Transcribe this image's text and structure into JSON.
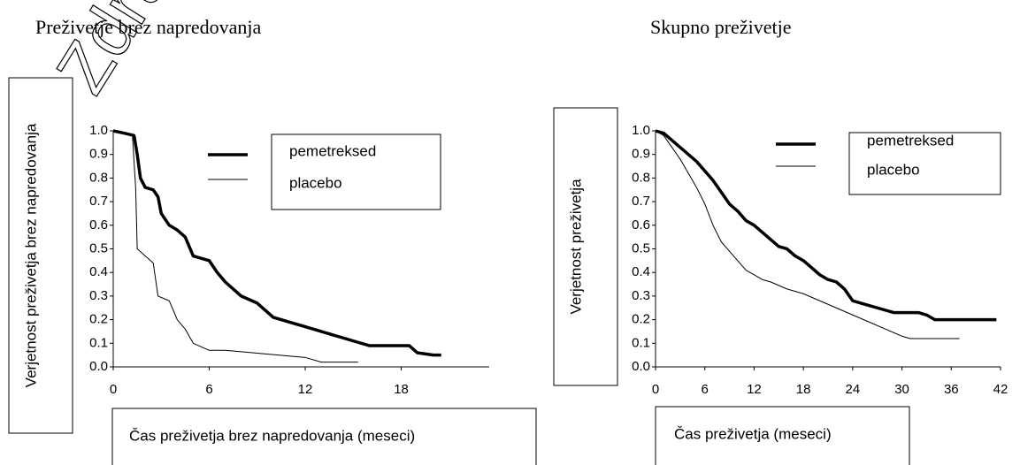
{
  "watermark": "Zdra",
  "chart_data": [
    {
      "type": "line",
      "title": "Preživetje brez napredovanja",
      "y_label": "Verjetnost preživetja brez napredovanja",
      "x_label": "Čas preživetja brez napredovanja (meseci)",
      "xlim": [
        0,
        23.5
      ],
      "xticks": [
        0,
        6,
        12,
        18
      ],
      "ylim": [
        0,
        1
      ],
      "yticks": [
        {
          "value": 0,
          "label": "0.0"
        },
        0.1,
        0.2,
        0.3,
        0.4,
        0.5,
        0.6,
        0.7,
        0.8,
        0.9,
        {
          "value": 1,
          "label": "1.0"
        }
      ],
      "series": [
        {
          "name": "pemetreksed",
          "color": "#000000",
          "x": [
            0,
            0.7,
            1.3,
            1.5,
            1.7,
            2,
            2.5,
            2.8,
            3,
            3.5,
            4,
            4.5,
            5,
            6,
            6.5,
            7,
            8,
            9,
            10,
            11,
            12,
            13,
            14,
            15,
            16,
            18.5,
            19,
            20,
            20.5
          ],
          "values": [
            1.0,
            0.99,
            0.98,
            0.9,
            0.8,
            0.76,
            0.75,
            0.72,
            0.65,
            0.6,
            0.58,
            0.55,
            0.47,
            0.45,
            0.4,
            0.36,
            0.3,
            0.27,
            0.21,
            0.19,
            0.17,
            0.15,
            0.13,
            0.11,
            0.09,
            0.09,
            0.06,
            0.05,
            0.05
          ]
        },
        {
          "name": "placebo",
          "color": "#000000",
          "x": [
            0,
            1.2,
            1.4,
            1.5,
            2,
            2.5,
            2.8,
            3.5,
            4,
            4.5,
            5,
            6,
            7,
            12,
            13,
            15.3
          ],
          "values": [
            1.0,
            0.98,
            0.76,
            0.5,
            0.47,
            0.44,
            0.3,
            0.28,
            0.2,
            0.16,
            0.1,
            0.07,
            0.07,
            0.04,
            0.02,
            0.02
          ]
        }
      ]
    },
    {
      "type": "line",
      "title": "Skupno preživetje",
      "y_label": "Verjetnost preživetja",
      "x_label": "Čas preživetja (meseci)",
      "xlim": [
        0,
        42
      ],
      "xticks": [
        0,
        6,
        12,
        18,
        24,
        30,
        36,
        42
      ],
      "ylim": [
        0,
        1
      ],
      "yticks": [
        {
          "value": 0,
          "label": "0.0"
        },
        0.1,
        0.2,
        0.3,
        0.4,
        0.5,
        0.6,
        0.7,
        0.8,
        0.9,
        {
          "value": 1,
          "label": "1.0"
        }
      ],
      "series": [
        {
          "name": "pemetreksed",
          "color": "#000000",
          "x": [
            0,
            1,
            2,
            3,
            4,
            5,
            6,
            7,
            8,
            9,
            10,
            11,
            12,
            13,
            14,
            15,
            16,
            17,
            18,
            19,
            20,
            21,
            22,
            23,
            24,
            25,
            27,
            29,
            32,
            33,
            34,
            41.5
          ],
          "values": [
            1.0,
            0.99,
            0.96,
            0.93,
            0.9,
            0.87,
            0.83,
            0.79,
            0.74,
            0.69,
            0.66,
            0.62,
            0.6,
            0.57,
            0.54,
            0.51,
            0.5,
            0.47,
            0.45,
            0.42,
            0.39,
            0.37,
            0.36,
            0.33,
            0.28,
            0.27,
            0.25,
            0.23,
            0.23,
            0.22,
            0.2,
            0.2
          ]
        },
        {
          "name": "placebo",
          "color": "#000000",
          "x": [
            0,
            1,
            2,
            3,
            4,
            5,
            6,
            7,
            8,
            9,
            10,
            11,
            12,
            13,
            14,
            16,
            18,
            20,
            22,
            24,
            26,
            28,
            30,
            31,
            37
          ],
          "values": [
            1.0,
            0.98,
            0.93,
            0.88,
            0.82,
            0.76,
            0.69,
            0.6,
            0.53,
            0.49,
            0.45,
            0.41,
            0.39,
            0.37,
            0.36,
            0.33,
            0.31,
            0.28,
            0.25,
            0.22,
            0.19,
            0.16,
            0.13,
            0.12,
            0.12
          ]
        }
      ]
    }
  ]
}
